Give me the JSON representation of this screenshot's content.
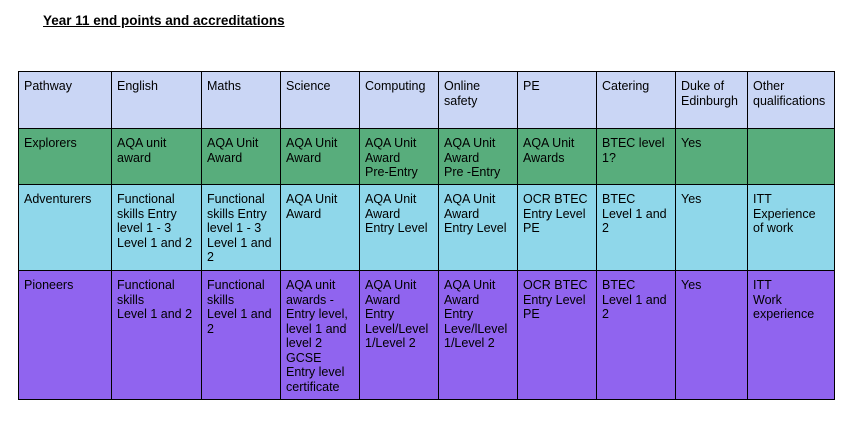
{
  "title": "Year 11 end points and accreditations",
  "colors": {
    "header": "#cad6f5",
    "explorers": "#58ad7c",
    "adventurers": "#8fd7ea",
    "pioneers": "#9064ef"
  },
  "table": {
    "headers": [
      "Pathway",
      "English",
      "Maths",
      "Science",
      "Computing",
      "Online\nsafety",
      "PE",
      "Catering",
      "Duke of\nEdinburgh",
      "Other\nqualifications"
    ],
    "rows": [
      {
        "cells": [
          "Explorers",
          "AQA unit\naward",
          "AQA Unit\nAward",
          "AQA Unit\nAward",
          "AQA Unit\nAward\nPre-Entry",
          "AQA Unit\nAward\nPre -Entry",
          "AQA Unit\nAwards",
          "BTEC level\n1?",
          "Yes",
          ""
        ]
      },
      {
        "cells": [
          "Adventurers",
          "Functional\nskills Entry\nlevel 1 - 3\nLevel 1 and 2",
          "Functional\nskills Entry\nlevel 1 - 3\nLevel 1 and\n2",
          "AQA Unit\nAward",
          "AQA Unit\nAward\nEntry Level",
          "AQA Unit\nAward\nEntry Level",
          "OCR BTEC\nEntry Level\nPE",
          "BTEC\nLevel 1 and\n2",
          "Yes",
          "ITT\nExperience\nof work"
        ]
      },
      {
        "cells": [
          "Pioneers",
          "Functional\nskills\nLevel 1 and 2",
          "Functional\nskills\nLevel 1 and\n2",
          "AQA unit\nawards -\nEntry level,\nlevel 1 and\nlevel 2\nGCSE\nEntry level\ncertificate",
          "AQA Unit\nAward\nEntry\nLevel/Level\n1/Level 2",
          "AQA Unit\nAward\nEntry\nLeve/lLevel\n1/Level 2",
          "OCR BTEC\nEntry Level\nPE",
          "BTEC\nLevel 1 and\n2",
          "Yes",
          "ITT\nWork\nexperience"
        ]
      }
    ]
  }
}
